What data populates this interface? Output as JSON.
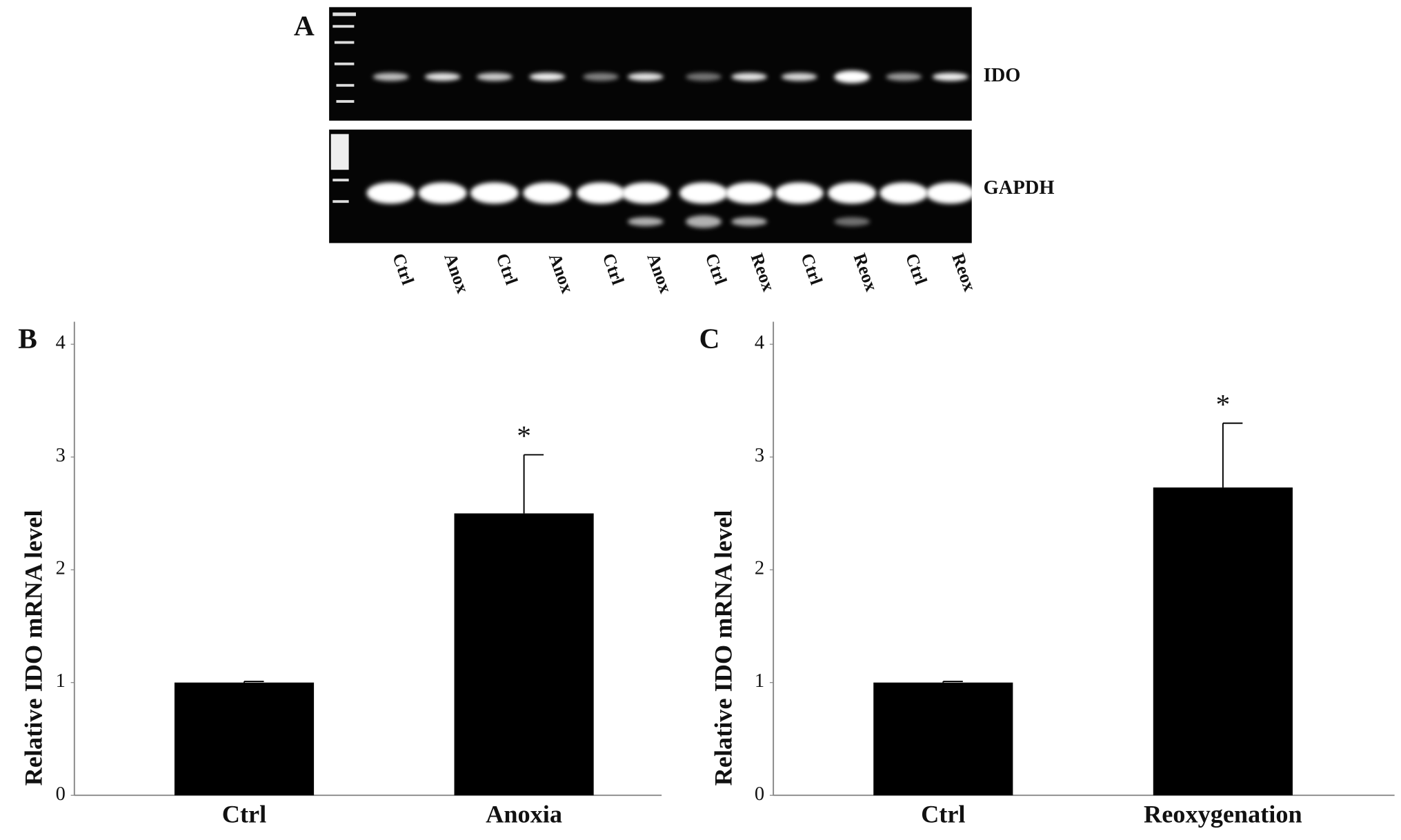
{
  "panel_a": {
    "label": "A",
    "rows": [
      "IDO",
      "GAPDH"
    ],
    "lanes": [
      "Ctrl",
      "Anox",
      "Ctrl",
      "Anox",
      "Ctrl",
      "Anox",
      "Ctrl",
      "Reox",
      "Ctrl",
      "Reox",
      "Ctrl",
      "Reox"
    ]
  },
  "chart_data": [
    {
      "type": "bar",
      "panel_label": "B",
      "y_label": "Relative IDO mRNA level",
      "categories": [
        "Ctrl",
        "Anoxia"
      ],
      "values": [
        1.0,
        2.5
      ],
      "errors": [
        0.01,
        0.52
      ],
      "color": "#000000",
      "annotations": [
        {
          "text": "*",
          "category": "Anoxia"
        }
      ],
      "ylim": [
        0,
        4.2
      ],
      "yticks": [
        0,
        1,
        2,
        3,
        4
      ]
    },
    {
      "type": "bar",
      "panel_label": "C",
      "y_label": "Relative IDO mRNA level",
      "categories": [
        "Ctrl",
        "Reoxygenation"
      ],
      "values": [
        1.0,
        2.73
      ],
      "errors": [
        0.01,
        0.57
      ],
      "color": "#000000",
      "annotations": [
        {
          "text": "*",
          "category": "Reoxygenation"
        }
      ],
      "ylim": [
        0,
        4.2
      ],
      "yticks": [
        0,
        1,
        2,
        3,
        4
      ]
    }
  ]
}
